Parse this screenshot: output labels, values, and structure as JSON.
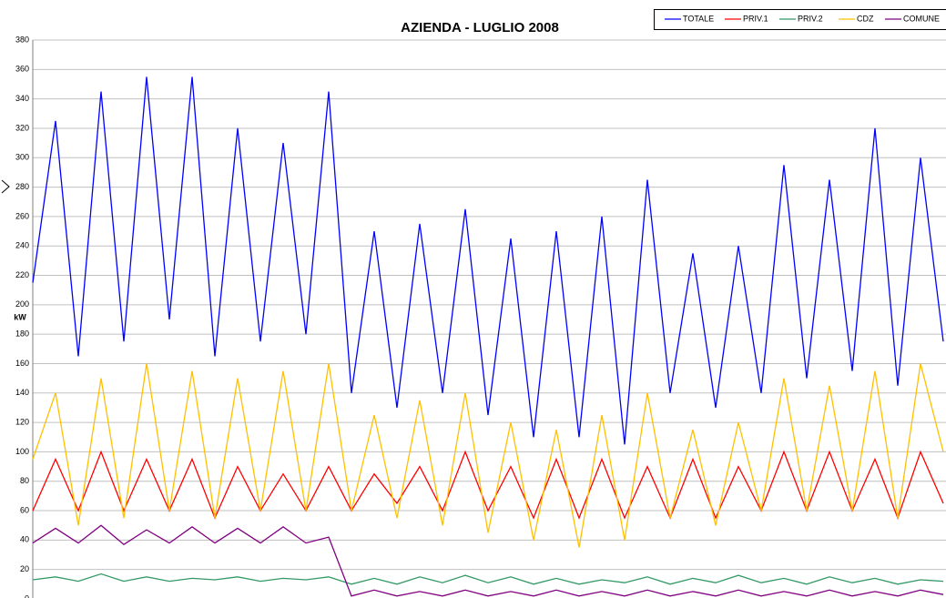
{
  "chart_data": {
    "type": "line",
    "title": "AZIENDA - LUGLIO 2008",
    "y_label": "kW",
    "ylim": [
      0,
      380
    ],
    "yticks": [
      0,
      20,
      40,
      60,
      80,
      100,
      120,
      140,
      160,
      180,
      200,
      220,
      240,
      260,
      280,
      300,
      320,
      340,
      360,
      380
    ],
    "grid": true,
    "legend": "top-right",
    "series": [
      {
        "name": "TOTALE",
        "color": "#0000ff",
        "values": [
          215,
          325,
          165,
          345,
          175,
          355,
          190,
          355,
          165,
          320,
          175,
          310,
          180,
          345,
          140,
          250,
          130,
          255,
          140,
          265,
          125,
          245,
          110,
          250,
          110,
          260,
          105,
          285,
          140,
          235,
          130,
          240,
          140,
          295,
          150,
          285,
          155,
          320,
          145,
          300,
          175
        ]
      },
      {
        "name": "PRIV.1",
        "color": "#ff0000",
        "values": [
          60,
          95,
          60,
          100,
          60,
          95,
          60,
          95,
          55,
          90,
          60,
          85,
          60,
          90,
          60,
          85,
          65,
          90,
          60,
          100,
          60,
          90,
          55,
          95,
          55,
          95,
          55,
          90,
          55,
          95,
          55,
          90,
          60,
          100,
          60,
          100,
          60,
          95,
          55,
          100,
          65
        ]
      },
      {
        "name": "PRIV.2",
        "color": "#339966",
        "values": [
          13,
          15,
          12,
          17,
          12,
          15,
          12,
          14,
          13,
          15,
          12,
          14,
          13,
          15,
          10,
          14,
          10,
          15,
          11,
          16,
          11,
          15,
          10,
          14,
          10,
          13,
          11,
          15,
          10,
          14,
          11,
          16,
          11,
          14,
          10,
          15,
          11,
          14,
          10,
          13,
          12
        ]
      },
      {
        "name": "CDZ",
        "color": "#ffc000",
        "values": [
          95,
          140,
          50,
          150,
          55,
          160,
          60,
          155,
          55,
          150,
          60,
          155,
          60,
          160,
          60,
          125,
          55,
          135,
          50,
          140,
          45,
          120,
          40,
          115,
          35,
          125,
          40,
          140,
          55,
          115,
          50,
          120,
          60,
          150,
          60,
          145,
          60,
          155,
          55,
          160,
          100
        ]
      },
      {
        "name": "COMUNE",
        "color": "#800080",
        "values": [
          38,
          48,
          38,
          50,
          37,
          47,
          38,
          49,
          38,
          48,
          38,
          49,
          38,
          42,
          2,
          6,
          2,
          5,
          2,
          6,
          2,
          5,
          2,
          6,
          2,
          5,
          2,
          6,
          2,
          5,
          2,
          6,
          2,
          5,
          2,
          6,
          2,
          5,
          2,
          6,
          3
        ]
      }
    ]
  }
}
